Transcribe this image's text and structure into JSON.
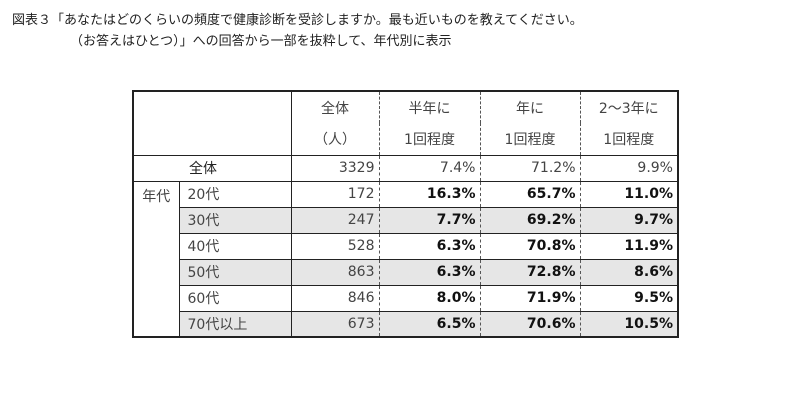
{
  "caption": {
    "line1": "図表３「あなたはどのくらいの頻度で健康診断を受診しますか。最も近いものを教えてください。",
    "line2": "（お答えはひとつ）」への回答から一部を抜粋して、年代別に表示"
  },
  "table": {
    "headers": {
      "total_l1": "全体",
      "total_l2": "（人）",
      "half_l1": "半年に",
      "half_l2": "1回程度",
      "year_l1": "年に",
      "year_l2": "1回程度",
      "y23_l1": "2～3年に",
      "y23_l2": "1回程度"
    },
    "overall": {
      "label": "全体",
      "n": "3329",
      "half": "7.4%",
      "year": "71.2%",
      "y23": "9.9%"
    },
    "group_label": "年代",
    "rows": [
      {
        "label": "20代",
        "n": "172",
        "half": "16.3%",
        "year": "65.7%",
        "y23": "11.0%"
      },
      {
        "label": "30代",
        "n": "247",
        "half": "7.7%",
        "year": "69.2%",
        "y23": "9.7%"
      },
      {
        "label": "40代",
        "n": "528",
        "half": "6.3%",
        "year": "70.8%",
        "y23": "11.9%"
      },
      {
        "label": "50代",
        "n": "863",
        "half": "6.3%",
        "year": "72.8%",
        "y23": "8.6%"
      },
      {
        "label": "60代",
        "n": "846",
        "half": "8.0%",
        "year": "71.9%",
        "y23": "9.5%"
      },
      {
        "label": "70代以上",
        "n": "673",
        "half": "6.5%",
        "year": "70.6%",
        "y23": "10.5%"
      }
    ]
  }
}
